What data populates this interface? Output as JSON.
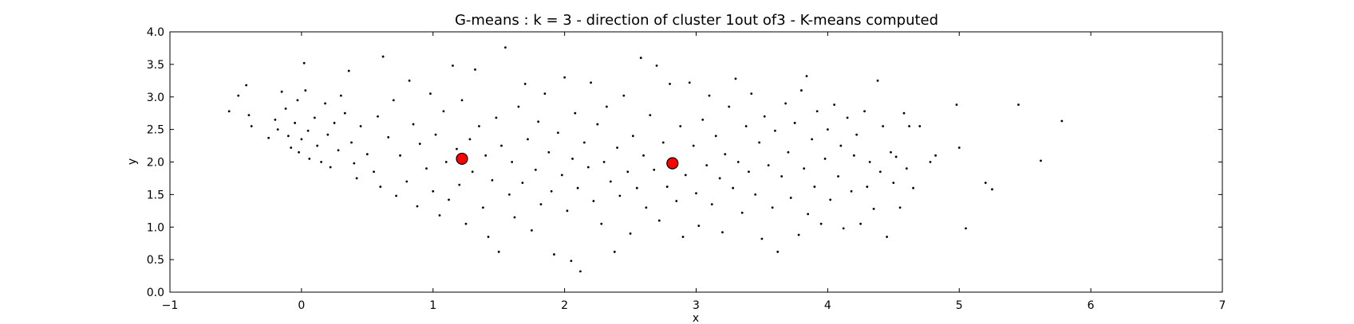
{
  "chart_data": {
    "type": "scatter",
    "title": "G-means : k = 3 - direction of cluster 1out of3 - K-means computed",
    "xlabel": "x",
    "ylabel": "y",
    "xlim": [
      -1,
      7
    ],
    "ylim": [
      0.0,
      4.0
    ],
    "xticks": [
      -1,
      0,
      1,
      2,
      3,
      4,
      5,
      6,
      7
    ],
    "xtick_labels": [
      "−1",
      "0",
      "1",
      "2",
      "3",
      "4",
      "5",
      "6",
      "7"
    ],
    "yticks": [
      0.0,
      0.5,
      1.0,
      1.5,
      2.0,
      2.5,
      3.0,
      3.5,
      4.0
    ],
    "ytick_labels": [
      "0.0",
      "0.5",
      "1.0",
      "1.5",
      "2.0",
      "2.5",
      "3.0",
      "3.5",
      "4.0"
    ],
    "grid": false,
    "series": [
      {
        "marker": "small black dots",
        "color": "#000000",
        "points": [
          [
            -0.55,
            2.78
          ],
          [
            -0.48,
            3.02
          ],
          [
            -0.42,
            3.18
          ],
          [
            -0.4,
            2.72
          ],
          [
            -0.38,
            2.55
          ],
          [
            -0.25,
            2.37
          ],
          [
            -0.2,
            2.65
          ],
          [
            -0.18,
            2.5
          ],
          [
            -0.15,
            3.08
          ],
          [
            -0.12,
            2.82
          ],
          [
            -0.1,
            2.4
          ],
          [
            -0.08,
            2.22
          ],
          [
            -0.05,
            2.6
          ],
          [
            -0.03,
            2.95
          ],
          [
            -0.02,
            2.15
          ],
          [
            0.0,
            2.35
          ],
          [
            0.02,
            3.52
          ],
          [
            0.03,
            3.1
          ],
          [
            0.05,
            2.48
          ],
          [
            0.06,
            2.05
          ],
          [
            0.1,
            2.68
          ],
          [
            0.12,
            2.25
          ],
          [
            0.15,
            2.0
          ],
          [
            0.18,
            2.9
          ],
          [
            0.2,
            2.42
          ],
          [
            0.22,
            1.92
          ],
          [
            0.25,
            2.6
          ],
          [
            0.28,
            2.18
          ],
          [
            0.3,
            3.02
          ],
          [
            0.33,
            2.75
          ],
          [
            0.36,
            3.4
          ],
          [
            0.38,
            2.3
          ],
          [
            0.4,
            1.98
          ],
          [
            0.42,
            1.75
          ],
          [
            0.45,
            2.55
          ],
          [
            0.5,
            2.12
          ],
          [
            0.55,
            1.85
          ],
          [
            0.58,
            2.7
          ],
          [
            0.6,
            1.62
          ],
          [
            0.62,
            3.62
          ],
          [
            0.66,
            2.38
          ],
          [
            0.7,
            2.95
          ],
          [
            0.72,
            1.48
          ],
          [
            0.75,
            2.1
          ],
          [
            0.8,
            1.7
          ],
          [
            0.82,
            3.25
          ],
          [
            0.85,
            2.58
          ],
          [
            0.88,
            1.32
          ],
          [
            0.9,
            2.28
          ],
          [
            0.95,
            1.9
          ],
          [
            0.98,
            3.05
          ],
          [
            1.0,
            1.55
          ],
          [
            1.02,
            2.42
          ],
          [
            1.05,
            1.18
          ],
          [
            1.08,
            2.78
          ],
          [
            1.1,
            2.0
          ],
          [
            1.12,
            1.42
          ],
          [
            1.15,
            3.48
          ],
          [
            1.18,
            2.2
          ],
          [
            1.2,
            1.65
          ],
          [
            1.22,
            2.95
          ],
          [
            1.25,
            1.05
          ],
          [
            1.28,
            2.35
          ],
          [
            1.3,
            1.85
          ],
          [
            1.32,
            3.42
          ],
          [
            1.35,
            2.55
          ],
          [
            1.38,
            1.3
          ],
          [
            1.4,
            2.1
          ],
          [
            1.42,
            0.85
          ],
          [
            1.45,
            1.72
          ],
          [
            1.48,
            2.68
          ],
          [
            1.5,
            0.62
          ],
          [
            1.52,
            2.25
          ],
          [
            1.55,
            3.76
          ],
          [
            1.58,
            1.5
          ],
          [
            1.6,
            2.0
          ],
          [
            1.62,
            1.15
          ],
          [
            1.65,
            2.85
          ],
          [
            1.68,
            1.68
          ],
          [
            1.7,
            3.2
          ],
          [
            1.72,
            2.35
          ],
          [
            1.75,
            0.95
          ],
          [
            1.78,
            1.88
          ],
          [
            1.8,
            2.62
          ],
          [
            1.82,
            1.35
          ],
          [
            1.85,
            3.05
          ],
          [
            1.88,
            2.15
          ],
          [
            1.9,
            1.55
          ],
          [
            1.92,
            0.58
          ],
          [
            1.95,
            2.45
          ],
          [
            1.98,
            1.8
          ],
          [
            2.0,
            3.3
          ],
          [
            2.02,
            1.25
          ],
          [
            2.05,
            0.48
          ],
          [
            2.06,
            2.05
          ],
          [
            2.08,
            2.75
          ],
          [
            2.1,
            1.6
          ],
          [
            2.12,
            0.32
          ],
          [
            2.15,
            2.3
          ],
          [
            2.18,
            1.92
          ],
          [
            2.2,
            3.22
          ],
          [
            2.22,
            1.4
          ],
          [
            2.25,
            2.58
          ],
          [
            2.28,
            1.05
          ],
          [
            2.3,
            2.0
          ],
          [
            2.32,
            2.85
          ],
          [
            2.35,
            1.7
          ],
          [
            2.38,
            0.62
          ],
          [
            2.4,
            2.22
          ],
          [
            2.42,
            1.48
          ],
          [
            2.45,
            3.02
          ],
          [
            2.48,
            1.85
          ],
          [
            2.5,
            0.9
          ],
          [
            2.52,
            2.4
          ],
          [
            2.55,
            1.6
          ],
          [
            2.58,
            3.6
          ],
          [
            2.6,
            2.1
          ],
          [
            2.62,
            1.3
          ],
          [
            2.65,
            2.72
          ],
          [
            2.68,
            1.88
          ],
          [
            2.7,
            3.48
          ],
          [
            2.72,
            1.1
          ],
          [
            2.75,
            2.3
          ],
          [
            2.78,
            1.62
          ],
          [
            2.8,
            3.2
          ],
          [
            2.82,
            2.0
          ],
          [
            2.85,
            1.4
          ],
          [
            2.88,
            2.55
          ],
          [
            2.9,
            0.85
          ],
          [
            2.92,
            1.8
          ],
          [
            2.95,
            3.22
          ],
          [
            2.98,
            2.25
          ],
          [
            3.0,
            1.52
          ],
          [
            3.02,
            1.02
          ],
          [
            3.05,
            2.65
          ],
          [
            3.08,
            1.95
          ],
          [
            3.1,
            3.02
          ],
          [
            3.12,
            1.35
          ],
          [
            3.15,
            2.4
          ],
          [
            3.18,
            1.75
          ],
          [
            3.2,
            0.92
          ],
          [
            3.22,
            2.12
          ],
          [
            3.25,
            2.85
          ],
          [
            3.28,
            1.6
          ],
          [
            3.3,
            3.28
          ],
          [
            3.32,
            2.0
          ],
          [
            3.35,
            1.22
          ],
          [
            3.38,
            2.55
          ],
          [
            3.4,
            1.85
          ],
          [
            3.42,
            3.05
          ],
          [
            3.45,
            1.5
          ],
          [
            3.48,
            2.3
          ],
          [
            3.5,
            0.82
          ],
          [
            3.52,
            2.7
          ],
          [
            3.55,
            1.95
          ],
          [
            3.58,
            1.3
          ],
          [
            3.6,
            2.48
          ],
          [
            3.62,
            0.62
          ],
          [
            3.65,
            1.78
          ],
          [
            3.68,
            2.9
          ],
          [
            3.7,
            2.15
          ],
          [
            3.72,
            1.45
          ],
          [
            3.75,
            2.6
          ],
          [
            3.78,
            0.88
          ],
          [
            3.8,
            3.1
          ],
          [
            3.82,
            1.9
          ],
          [
            3.84,
            3.32
          ],
          [
            3.85,
            1.2
          ],
          [
            3.88,
            2.35
          ],
          [
            3.9,
            1.62
          ],
          [
            3.92,
            2.78
          ],
          [
            3.95,
            1.05
          ],
          [
            3.98,
            2.05
          ],
          [
            4.0,
            2.5
          ],
          [
            4.02,
            1.42
          ],
          [
            4.05,
            2.88
          ],
          [
            4.08,
            1.78
          ],
          [
            4.1,
            2.25
          ],
          [
            4.12,
            0.98
          ],
          [
            4.15,
            2.68
          ],
          [
            4.18,
            1.55
          ],
          [
            4.2,
            2.1
          ],
          [
            4.22,
            2.42
          ],
          [
            4.25,
            1.05
          ],
          [
            4.28,
            2.78
          ],
          [
            4.3,
            1.62
          ],
          [
            4.32,
            2.0
          ],
          [
            4.35,
            1.28
          ],
          [
            4.38,
            3.25
          ],
          [
            4.4,
            1.85
          ],
          [
            4.42,
            2.55
          ],
          [
            4.45,
            0.85
          ],
          [
            4.48,
            2.15
          ],
          [
            4.5,
            1.68
          ],
          [
            4.52,
            2.08
          ],
          [
            4.55,
            1.3
          ],
          [
            4.58,
            2.75
          ],
          [
            4.6,
            1.9
          ],
          [
            4.62,
            2.55
          ],
          [
            4.65,
            1.6
          ],
          [
            4.7,
            2.55
          ],
          [
            4.78,
            2.0
          ],
          [
            4.82,
            2.1
          ],
          [
            4.98,
            2.88
          ],
          [
            5.0,
            2.22
          ],
          [
            5.05,
            0.98
          ],
          [
            5.2,
            1.68
          ],
          [
            5.25,
            1.58
          ],
          [
            5.45,
            2.88
          ],
          [
            5.62,
            2.02
          ],
          [
            5.78,
            2.63
          ]
        ]
      },
      {
        "marker": "large red circles",
        "color": "#ff0000",
        "points": [
          [
            1.22,
            2.05
          ],
          [
            2.82,
            1.98
          ]
        ]
      }
    ]
  }
}
